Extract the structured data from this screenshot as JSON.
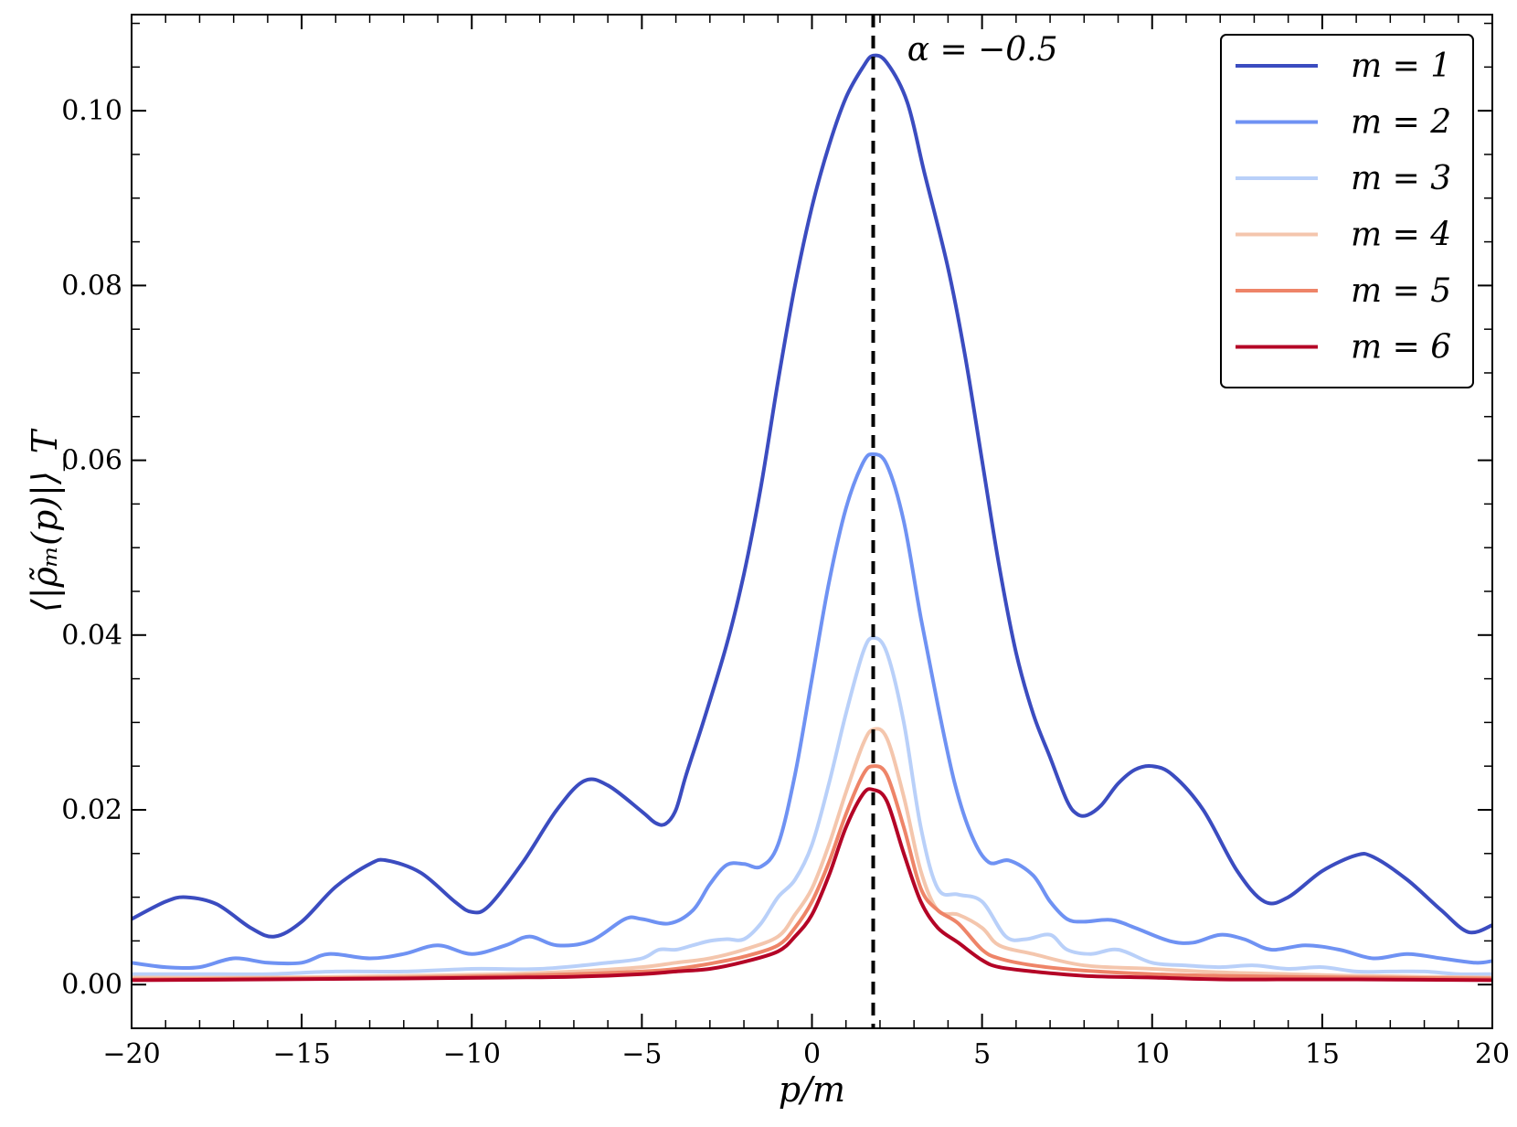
{
  "chart_data": {
    "type": "line",
    "xlabel": "p/m",
    "ylabel": "⟨|ρ̃ₘ(p)|⟩_T",
    "xlim": [
      -20,
      20
    ],
    "ylim": [
      -0.005,
      0.111
    ],
    "xticks": [
      -20,
      -15,
      -10,
      -5,
      0,
      5,
      10,
      15,
      20
    ],
    "xtick_labels": [
      "−20",
      "−15",
      "−10",
      "−5",
      "0",
      "5",
      "10",
      "15",
      "20"
    ],
    "yticks": [
      0.0,
      0.02,
      0.04,
      0.06,
      0.08,
      0.1
    ],
    "ytick_labels": [
      "0.00",
      "0.02",
      "0.04",
      "0.06",
      "0.08",
      "0.10"
    ],
    "grid": false,
    "legend_position": "top-right",
    "annotation": {
      "text": "α = −0.5",
      "x": 2.8,
      "y": 0.107
    },
    "vline": {
      "x": 1.8,
      "style": "dashed",
      "color": "#000000"
    },
    "series": [
      {
        "name": "m = 1",
        "color": "#3b4cc0",
        "points": [
          [
            -20,
            0.0075
          ],
          [
            -19,
            0.0095
          ],
          [
            -18.4,
            0.01
          ],
          [
            -17.5,
            0.0092
          ],
          [
            -16.5,
            0.0065
          ],
          [
            -15.8,
            0.0055
          ],
          [
            -15,
            0.0072
          ],
          [
            -14,
            0.0112
          ],
          [
            -13,
            0.0138
          ],
          [
            -12.5,
            0.0142
          ],
          [
            -11.5,
            0.0128
          ],
          [
            -10.5,
            0.0095
          ],
          [
            -10,
            0.0083
          ],
          [
            -9.5,
            0.009
          ],
          [
            -8.5,
            0.014
          ],
          [
            -7.5,
            0.02
          ],
          [
            -6.7,
            0.0233
          ],
          [
            -6,
            0.0228
          ],
          [
            -5,
            0.0198
          ],
          [
            -4.6,
            0.0185
          ],
          [
            -4.3,
            0.0184
          ],
          [
            -4,
            0.02
          ],
          [
            -3.7,
            0.024
          ],
          [
            -3.2,
            0.03
          ],
          [
            -2.5,
            0.039
          ],
          [
            -2,
            0.047
          ],
          [
            -1.5,
            0.057
          ],
          [
            -1,
            0.069
          ],
          [
            -0.5,
            0.08
          ],
          [
            0,
            0.089
          ],
          [
            0.5,
            0.096
          ],
          [
            1,
            0.1015
          ],
          [
            1.5,
            0.105
          ],
          [
            1.8,
            0.1063
          ],
          [
            2.2,
            0.1055
          ],
          [
            2.8,
            0.101
          ],
          [
            3.3,
            0.093
          ],
          [
            4,
            0.082
          ],
          [
            4.5,
            0.072
          ],
          [
            5,
            0.06
          ],
          [
            5.5,
            0.048
          ],
          [
            6,
            0.038
          ],
          [
            6.5,
            0.031
          ],
          [
            7,
            0.026
          ],
          [
            7.5,
            0.021
          ],
          [
            7.8,
            0.0195
          ],
          [
            8.1,
            0.0194
          ],
          [
            8.5,
            0.0205
          ],
          [
            9,
            0.023
          ],
          [
            9.5,
            0.0246
          ],
          [
            10,
            0.025
          ],
          [
            10.6,
            0.024
          ],
          [
            11.5,
            0.02
          ],
          [
            12.5,
            0.013
          ],
          [
            13.3,
            0.0095
          ],
          [
            14,
            0.01
          ],
          [
            15,
            0.013
          ],
          [
            16,
            0.0148
          ],
          [
            16.5,
            0.0146
          ],
          [
            17.5,
            0.012
          ],
          [
            18.5,
            0.0085
          ],
          [
            19.3,
            0.006
          ],
          [
            20,
            0.0068
          ]
        ]
      },
      {
        "name": "m = 2",
        "color": "#6f92f3",
        "points": [
          [
            -20,
            0.0025
          ],
          [
            -19,
            0.002
          ],
          [
            -18,
            0.002
          ],
          [
            -17,
            0.003
          ],
          [
            -16,
            0.0025
          ],
          [
            -15,
            0.0025
          ],
          [
            -14.2,
            0.0035
          ],
          [
            -13,
            0.003
          ],
          [
            -12,
            0.0035
          ],
          [
            -11,
            0.0045
          ],
          [
            -10,
            0.0035
          ],
          [
            -9,
            0.0045
          ],
          [
            -8.3,
            0.0055
          ],
          [
            -7.5,
            0.0045
          ],
          [
            -6.5,
            0.005
          ],
          [
            -5.5,
            0.0075
          ],
          [
            -5,
            0.0075
          ],
          [
            -4.2,
            0.007
          ],
          [
            -3.5,
            0.0085
          ],
          [
            -3,
            0.0115
          ],
          [
            -2.5,
            0.0137
          ],
          [
            -2,
            0.0138
          ],
          [
            -1.5,
            0.0135
          ],
          [
            -1,
            0.016
          ],
          [
            -0.5,
            0.024
          ],
          [
            0,
            0.035
          ],
          [
            0.5,
            0.046
          ],
          [
            1,
            0.0545
          ],
          [
            1.5,
            0.0597
          ],
          [
            1.8,
            0.0607
          ],
          [
            2.2,
            0.0595
          ],
          [
            2.7,
            0.053
          ],
          [
            3.2,
            0.042
          ],
          [
            3.7,
            0.032
          ],
          [
            4.2,
            0.023
          ],
          [
            4.7,
            0.017
          ],
          [
            5.2,
            0.014
          ],
          [
            5.8,
            0.0142
          ],
          [
            6.5,
            0.0125
          ],
          [
            7,
            0.0095
          ],
          [
            7.5,
            0.0075
          ],
          [
            8,
            0.0072
          ],
          [
            8.8,
            0.0074
          ],
          [
            9.5,
            0.0065
          ],
          [
            10.5,
            0.005
          ],
          [
            11.2,
            0.0048
          ],
          [
            12,
            0.0057
          ],
          [
            12.7,
            0.0052
          ],
          [
            13.5,
            0.004
          ],
          [
            14.5,
            0.0045
          ],
          [
            15.5,
            0.004
          ],
          [
            16.5,
            0.003
          ],
          [
            17.5,
            0.0035
          ],
          [
            18.5,
            0.003
          ],
          [
            19.5,
            0.0025
          ],
          [
            20,
            0.0027
          ]
        ]
      },
      {
        "name": "m = 3",
        "color": "#b9d0f9",
        "points": [
          [
            -20,
            0.0012
          ],
          [
            -18,
            0.0012
          ],
          [
            -16,
            0.0012
          ],
          [
            -14,
            0.0015
          ],
          [
            -12,
            0.0015
          ],
          [
            -10,
            0.0018
          ],
          [
            -8,
            0.0018
          ],
          [
            -6,
            0.0025
          ],
          [
            -5,
            0.003
          ],
          [
            -4.5,
            0.004
          ],
          [
            -4,
            0.004
          ],
          [
            -3.5,
            0.0045
          ],
          [
            -3,
            0.005
          ],
          [
            -2.5,
            0.0052
          ],
          [
            -2,
            0.0052
          ],
          [
            -1.5,
            0.007
          ],
          [
            -1,
            0.01
          ],
          [
            -0.5,
            0.012
          ],
          [
            0,
            0.016
          ],
          [
            0.5,
            0.023
          ],
          [
            1,
            0.031
          ],
          [
            1.5,
            0.038
          ],
          [
            1.8,
            0.0397
          ],
          [
            2.2,
            0.038
          ],
          [
            2.7,
            0.03
          ],
          [
            3.2,
            0.018
          ],
          [
            3.7,
            0.011
          ],
          [
            4.3,
            0.0103
          ],
          [
            5,
            0.0095
          ],
          [
            5.7,
            0.0055
          ],
          [
            6.3,
            0.0052
          ],
          [
            7,
            0.0057
          ],
          [
            7.5,
            0.004
          ],
          [
            8.2,
            0.0035
          ],
          [
            9,
            0.004
          ],
          [
            10,
            0.0025
          ],
          [
            11,
            0.0022
          ],
          [
            12,
            0.002
          ],
          [
            13,
            0.0022
          ],
          [
            14,
            0.0018
          ],
          [
            15,
            0.002
          ],
          [
            16,
            0.0015
          ],
          [
            17,
            0.0015
          ],
          [
            18,
            0.0015
          ],
          [
            19,
            0.0012
          ],
          [
            20,
            0.0012
          ]
        ]
      },
      {
        "name": "m = 4",
        "color": "#f4c6ad",
        "points": [
          [
            -20,
            0.0008
          ],
          [
            -16,
            0.0008
          ],
          [
            -12,
            0.001
          ],
          [
            -9,
            0.0012
          ],
          [
            -7,
            0.0015
          ],
          [
            -5,
            0.002
          ],
          [
            -4,
            0.0025
          ],
          [
            -3,
            0.003
          ],
          [
            -2,
            0.004
          ],
          [
            -1,
            0.0055
          ],
          [
            -0.5,
            0.008
          ],
          [
            0,
            0.011
          ],
          [
            0.5,
            0.016
          ],
          [
            1,
            0.022
          ],
          [
            1.5,
            0.0275
          ],
          [
            1.8,
            0.0292
          ],
          [
            2.2,
            0.0282
          ],
          [
            2.7,
            0.0215
          ],
          [
            3.2,
            0.013
          ],
          [
            3.7,
            0.0085
          ],
          [
            4.3,
            0.008
          ],
          [
            5,
            0.0065
          ],
          [
            5.5,
            0.0045
          ],
          [
            6.5,
            0.0035
          ],
          [
            8,
            0.0022
          ],
          [
            10,
            0.0018
          ],
          [
            12,
            0.0014
          ],
          [
            14,
            0.0012
          ],
          [
            16,
            0.001
          ],
          [
            20,
            0.0008
          ]
        ]
      },
      {
        "name": "m = 5",
        "color": "#ee8468",
        "points": [
          [
            -20,
            0.0006
          ],
          [
            -16,
            0.0007
          ],
          [
            -12,
            0.0008
          ],
          [
            -9,
            0.001
          ],
          [
            -7,
            0.0012
          ],
          [
            -5,
            0.0015
          ],
          [
            -4,
            0.0018
          ],
          [
            -3,
            0.0024
          ],
          [
            -2,
            0.0032
          ],
          [
            -1,
            0.0045
          ],
          [
            -0.5,
            0.0065
          ],
          [
            0,
            0.0095
          ],
          [
            0.5,
            0.014
          ],
          [
            1,
            0.0195
          ],
          [
            1.5,
            0.024
          ],
          [
            1.8,
            0.025
          ],
          [
            2.2,
            0.024
          ],
          [
            2.7,
            0.018
          ],
          [
            3.2,
            0.011
          ],
          [
            3.7,
            0.0085
          ],
          [
            4.3,
            0.007
          ],
          [
            5,
            0.004
          ],
          [
            5.5,
            0.003
          ],
          [
            6.5,
            0.0022
          ],
          [
            8,
            0.0016
          ],
          [
            10,
            0.0012
          ],
          [
            12,
            0.001
          ],
          [
            14,
            0.0009
          ],
          [
            16,
            0.0008
          ],
          [
            20,
            0.0007
          ]
        ]
      },
      {
        "name": "m = 6",
        "color": "#b40426",
        "points": [
          [
            -20,
            0.0005
          ],
          [
            -16,
            0.0006
          ],
          [
            -12,
            0.0007
          ],
          [
            -9,
            0.0008
          ],
          [
            -7,
            0.0009
          ],
          [
            -5,
            0.0012
          ],
          [
            -4,
            0.0015
          ],
          [
            -3,
            0.0018
          ],
          [
            -2,
            0.0026
          ],
          [
            -1,
            0.0038
          ],
          [
            -0.5,
            0.0055
          ],
          [
            0,
            0.008
          ],
          [
            0.5,
            0.0125
          ],
          [
            1,
            0.018
          ],
          [
            1.5,
            0.0218
          ],
          [
            1.8,
            0.0223
          ],
          [
            2.2,
            0.021
          ],
          [
            2.7,
            0.015
          ],
          [
            3.2,
            0.0095
          ],
          [
            3.7,
            0.0065
          ],
          [
            4.3,
            0.0048
          ],
          [
            5,
            0.0028
          ],
          [
            5.5,
            0.002
          ],
          [
            6.5,
            0.0015
          ],
          [
            8,
            0.001
          ],
          [
            10,
            0.0008
          ],
          [
            12,
            0.0006
          ],
          [
            14,
            0.0006
          ],
          [
            16,
            0.0006
          ],
          [
            20,
            0.0005
          ]
        ]
      }
    ]
  }
}
